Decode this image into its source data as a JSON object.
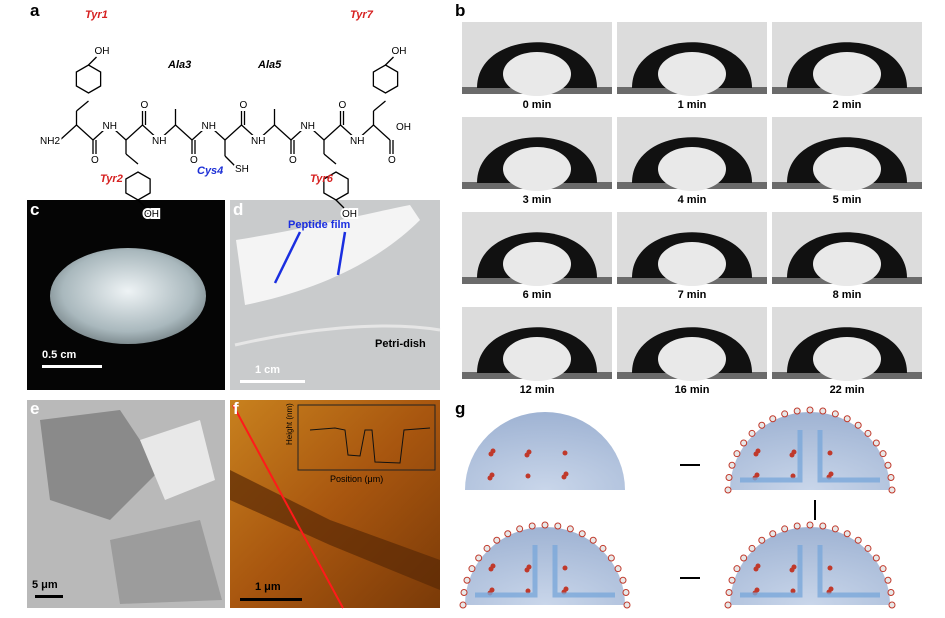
{
  "panels": {
    "a": {
      "label": "a",
      "residues": [
        "Tyr1",
        "Ala3",
        "Ala5",
        "Tyr7",
        "Tyr2",
        "Cys4",
        "Tyr6"
      ],
      "atoms": [
        "NH2",
        "NH",
        "NH",
        "NH",
        "NH",
        "NH",
        "NH",
        "O",
        "O",
        "O",
        "O",
        "O",
        "O",
        "O",
        "OH",
        "OH",
        "OH",
        "OH",
        "OH",
        "SH"
      ]
    },
    "b": {
      "label": "b",
      "times": [
        "0 min",
        "1 min",
        "2 min",
        "3 min",
        "4 min",
        "5 min",
        "6 min",
        "7 min",
        "8 min",
        "12 min",
        "16 min",
        "22 min"
      ]
    },
    "c": {
      "label": "c",
      "scale_bar": "0.5 cm"
    },
    "d": {
      "label": "d",
      "annotation": "Peptide film",
      "caption": "Petri-dish",
      "scale_bar": "1 cm"
    },
    "e": {
      "label": "e",
      "scale_bar": "5 μm"
    },
    "f": {
      "label": "f",
      "scale_bar": "1 μm",
      "inset_ylabel": "Height (nm)",
      "inset_xlabel": "Position (μm)"
    },
    "g": {
      "label": "g"
    }
  }
}
